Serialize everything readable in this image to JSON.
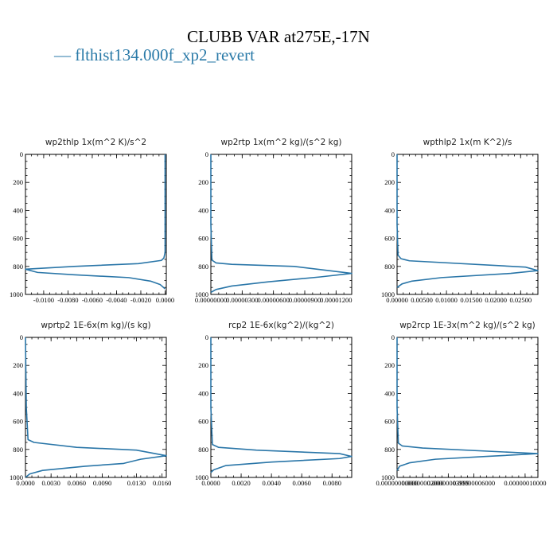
{
  "figure": {
    "title": "CLUBB VAR at275E,-17N",
    "legend": "— flthist134.000f_xp2_revert",
    "series_color": "#2a76a8"
  },
  "chart_data": [
    {
      "type": "line",
      "title": "wp2thlp  1x(m^2 K)/s^2",
      "xlim": [
        -0.0115,
        0.0001
      ],
      "ylim": [
        1000,
        0
      ],
      "x_tick_values": [
        -0.01,
        -0.008,
        -0.006,
        -0.004,
        -0.002,
        0.0
      ],
      "x_tick_labels": [
        "-0.0100",
        "-0.0080",
        "-0.0060",
        "-0.0040",
        "-0.0020",
        "0.0000"
      ],
      "y_tick_labels": [
        "0",
        "200",
        "400",
        "600",
        "800",
        "1000"
      ],
      "series": [
        {
          "x": [
            0,
            0,
            0,
            -0.0001,
            -0.0003,
            -0.0022,
            -0.0075,
            -0.0115,
            -0.0105,
            -0.0075,
            -0.003,
            -0.0012,
            -0.0004,
            0
          ],
          "y": [
            0,
            500,
            700,
            740,
            757,
            780,
            800,
            820,
            843,
            860,
            880,
            905,
            930,
            960
          ]
        }
      ]
    },
    {
      "type": "line",
      "title": "wp2rtp  1x(m^2 kg)/(s^2 kg)",
      "xlim": [
        0,
        1.35e-05
      ],
      "ylim": [
        1000,
        0
      ],
      "x_tick_values": [
        0,
        3e-06,
        6e-06,
        9e-06,
        1.2e-05
      ],
      "x_tick_labels": [
        "0.00000000",
        "0.00000300",
        "0.00000600",
        "0.00000900",
        "0.00001200"
      ],
      "y_tick_labels": [
        "0",
        "200",
        "400",
        "600",
        "800",
        "1000"
      ],
      "series": [
        {
          "x": [
            0,
            0,
            1e-07,
            5e-07,
            2e-06,
            8e-06,
            1.35e-05,
            1.05e-05,
            5.5e-06,
            2e-06,
            5e-07,
            0
          ],
          "y": [
            0,
            500,
            755,
            775,
            785,
            800,
            850,
            875,
            910,
            940,
            965,
            985
          ]
        }
      ]
    },
    {
      "type": "line",
      "title": "wpthlp2  1x(m K^2)/s",
      "xlim": [
        0,
        0.0285
      ],
      "ylim": [
        1000,
        0
      ],
      "x_tick_values": [
        0,
        0.005,
        0.01,
        0.015,
        0.02,
        0.025
      ],
      "x_tick_labels": [
        "0.00000",
        "0.00500",
        "0.01000",
        "0.01500",
        "0.02000",
        "0.02500"
      ],
      "y_tick_labels": [
        "0",
        "200",
        "400",
        "600",
        "800",
        "1000"
      ],
      "series": [
        {
          "x": [
            0,
            0,
            0.0002,
            0.0008,
            0.0025,
            0.026,
            0.0285,
            0.023,
            0.009,
            0.003,
            0.001,
            0
          ],
          "y": [
            0,
            500,
            720,
            745,
            760,
            805,
            830,
            850,
            880,
            905,
            925,
            950
          ]
        }
      ]
    },
    {
      "type": "line",
      "title": "wprtp2  1E-6x(m kg)/(s kg)",
      "xlim": [
        0,
        0.0165
      ],
      "ylim": [
        1000,
        0
      ],
      "x_tick_values": [
        0,
        0.003,
        0.006,
        0.009,
        0.013,
        0.016
      ],
      "x_tick_labels": [
        "0.0000",
        "0.0030",
        "0.0060",
        "0.0090",
        "0.0130",
        "0.0160"
      ],
      "y_tick_labels": [
        "0",
        "200",
        "400",
        "600",
        "800",
        "1000"
      ],
      "series": [
        {
          "x": [
            0,
            0.0001,
            0.0003,
            0.001,
            0.006,
            0.013,
            0.0165,
            0.0135,
            0.0115,
            0.007,
            0.002,
            0.0005,
            0
          ],
          "y": [
            0,
            500,
            730,
            750,
            785,
            805,
            845,
            870,
            900,
            920,
            950,
            975,
            1000
          ]
        }
      ]
    },
    {
      "type": "line",
      "title": "rcp2  1E-6x(kg^2)/(kg^2)",
      "xlim": [
        0,
        0.0093
      ],
      "ylim": [
        1000,
        0
      ],
      "x_tick_values": [
        0,
        0.002,
        0.004,
        0.006,
        0.008
      ],
      "x_tick_labels": [
        "0.0000",
        "0.0020",
        "0.0040",
        "0.0060",
        "0.0080"
      ],
      "y_tick_labels": [
        "0",
        "200",
        "400",
        "600",
        "800",
        "1000"
      ],
      "series": [
        {
          "x": [
            0,
            0,
            0.0001,
            0.0005,
            0.003,
            0.0085,
            0.0093,
            0.0085,
            0.004,
            0.001,
            0.0002,
            0
          ],
          "y": [
            0,
            500,
            765,
            785,
            805,
            830,
            850,
            865,
            890,
            915,
            945,
            965
          ]
        }
      ]
    },
    {
      "type": "line",
      "title": "wp2rcp  1E-3x(m^2 kg)/(s^2 kg)",
      "xlim": [
        0,
        1.1e-07
      ],
      "ylim": [
        1000,
        0
      ],
      "x_tick_values": [
        0,
        2e-08,
        4e-08,
        6e-08,
        1e-07
      ],
      "x_tick_labels": [
        "0.00000000000",
        "0.00000002000",
        "0.00000003999",
        "0.00000006000",
        "0.00000010000"
      ],
      "y_tick_labels": [
        "0",
        "200",
        "400",
        "600",
        "800",
        "1000"
      ],
      "series": [
        {
          "x": [
            0,
            0,
            1e-09,
            4e-09,
            2e-08,
            1.1e-07,
            7e-08,
            3e-08,
            1e-08,
            2e-09,
            0
          ],
          "y": [
            0,
            500,
            755,
            775,
            790,
            830,
            850,
            870,
            895,
            920,
            950
          ]
        }
      ]
    }
  ]
}
